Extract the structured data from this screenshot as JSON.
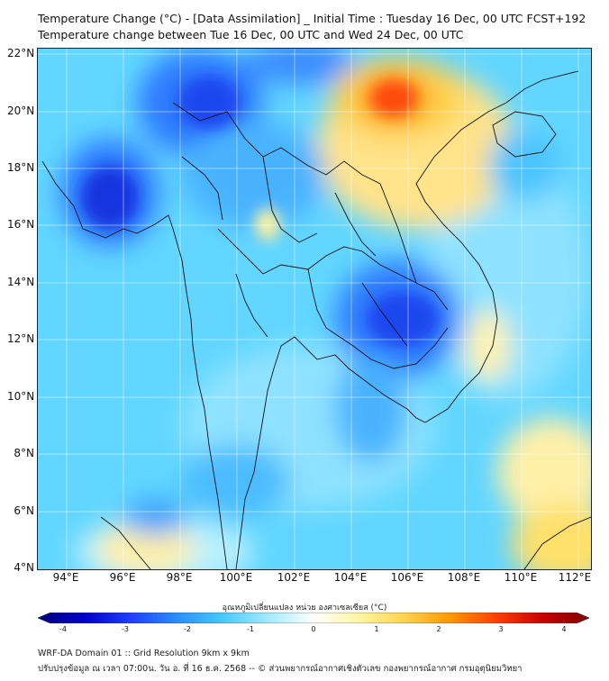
{
  "title": {
    "line1": "Temperature Change (°C) - [Data Assimilation] _ Initial Time : Tuesday 16 Dec, 00 UTC FCST+192",
    "line2": "Temperature change between Tue 16 Dec, 00 UTC and Wed 24 Dec, 00 UTC"
  },
  "axes": {
    "lat_labels": [
      "22°N",
      "20°N",
      "18°N",
      "16°N",
      "14°N",
      "12°N",
      "10°N",
      "8°N",
      "6°N",
      "4°N"
    ],
    "lon_labels": [
      "94°E",
      "96°E",
      "98°E",
      "100°E",
      "102°E",
      "104°E",
      "106°E",
      "108°E",
      "110°E",
      "112°E"
    ]
  },
  "colorbar": {
    "title": "อุณหภูมิเปลี่ยนแปลง หน่วย องศาเซลเซียส (°C)",
    "ticks": [
      "-4",
      "-3",
      "-2",
      "-1",
      "0",
      "1",
      "2",
      "3",
      "4"
    ],
    "colors": [
      "#000080",
      "#0000c8",
      "#1e3cff",
      "#2a8cff",
      "#46c8ff",
      "#a0ebff",
      "#ffffff",
      "#fff5a0",
      "#ffd24b",
      "#ff9600",
      "#ff3c00",
      "#c80000",
      "#800000"
    ]
  },
  "footer": {
    "line1": "WRF-DA Domain 01 :: Grid Resolution 9km x 9km",
    "line2": "ปรับปรุงข้อมูล ณ เวลา 07:00น. วัน อ. ที่ 16 ธ.ค. 2568 -- © ส่วนพยากรณ์อากาศเชิงตัวเลข กองพยากรณ์อากาศ กรมอุตุนิยมวิทยา"
  }
}
